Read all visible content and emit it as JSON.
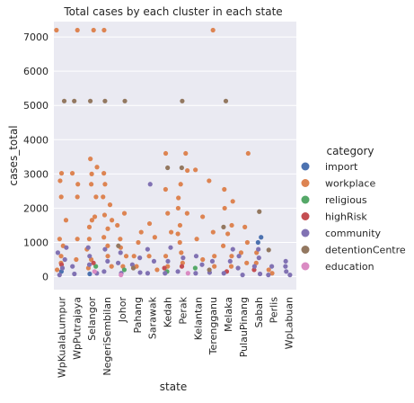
{
  "chart_data": {
    "type": "scatter",
    "title": "Total cases by each cluster in each state",
    "xlabel": "state",
    "ylabel": "cases_total",
    "ylim": [
      -380,
      7450
    ],
    "yticks": [
      0,
      1000,
      2000,
      3000,
      4000,
      5000,
      6000,
      7000
    ],
    "grid": true,
    "legend_title": "category",
    "legend_position": "right",
    "categories": [
      "WpKualaLumpur",
      "WpPutrajaya",
      "Selangor",
      "NegeriSembilan",
      "Johor",
      "Pahang",
      "Sarawak",
      "Kedah",
      "Perak",
      "Kelantan",
      "Terengganu",
      "Melaka",
      "PulauPinang",
      "Sabah",
      "Perlis",
      "WpLabuan"
    ],
    "series": [
      {
        "name": "import",
        "color": "#4c72b0",
        "points": [
          {
            "state": "Sabah",
            "y": 1150
          },
          {
            "state": "Sabah",
            "y": 1000
          },
          {
            "state": "WpKualaLumpur",
            "y": 150
          },
          {
            "state": "Selangor",
            "y": 80
          }
        ]
      },
      {
        "name": "workplace",
        "color": "#dd8452",
        "points": [
          {
            "state": "WpKualaLumpur",
            "y": 7200
          },
          {
            "state": "WpKualaLumpur",
            "y": 3020
          },
          {
            "state": "WpKualaLumpur",
            "y": 2800
          },
          {
            "state": "WpKualaLumpur",
            "y": 2330
          },
          {
            "state": "WpKualaLumpur",
            "y": 1650
          },
          {
            "state": "WpKualaLumpur",
            "y": 1100
          },
          {
            "state": "WpKualaLumpur",
            "y": 900
          },
          {
            "state": "WpKualaLumpur",
            "y": 600
          },
          {
            "state": "WpKualaLumpur",
            "y": 400
          },
          {
            "state": "WpKualaLumpur",
            "y": 200
          },
          {
            "state": "WpPutrajaya",
            "y": 7200
          },
          {
            "state": "WpPutrajaya",
            "y": 3020
          },
          {
            "state": "WpPutrajaya",
            "y": 2700
          },
          {
            "state": "WpPutrajaya",
            "y": 2330
          },
          {
            "state": "WpPutrajaya",
            "y": 1100
          },
          {
            "state": "WpPutrajaya",
            "y": 500
          },
          {
            "state": "Selangor",
            "y": 7200
          },
          {
            "state": "Selangor",
            "y": 3440
          },
          {
            "state": "Selangor",
            "y": 3200
          },
          {
            "state": "Selangor",
            "y": 3000
          },
          {
            "state": "Selangor",
            "y": 2700
          },
          {
            "state": "Selangor",
            "y": 2330
          },
          {
            "state": "Selangor",
            "y": 1750
          },
          {
            "state": "Selangor",
            "y": 1650
          },
          {
            "state": "Selangor",
            "y": 1450
          },
          {
            "state": "Selangor",
            "y": 1100
          },
          {
            "state": "Selangor",
            "y": 800
          },
          {
            "state": "Selangor",
            "y": 500
          },
          {
            "state": "Selangor",
            "y": 250
          },
          {
            "state": "NegeriSembilan",
            "y": 7200
          },
          {
            "state": "NegeriSembilan",
            "y": 3020
          },
          {
            "state": "NegeriSembilan",
            "y": 2700
          },
          {
            "state": "NegeriSembilan",
            "y": 2330
          },
          {
            "state": "NegeriSembilan",
            "y": 2100
          },
          {
            "state": "NegeriSembilan",
            "y": 1800
          },
          {
            "state": "NegeriSembilan",
            "y": 1650
          },
          {
            "state": "NegeriSembilan",
            "y": 1400
          },
          {
            "state": "NegeriSembilan",
            "y": 1150
          },
          {
            "state": "NegeriSembilan",
            "y": 900
          },
          {
            "state": "NegeriSembilan",
            "y": 600
          },
          {
            "state": "NegeriSembilan",
            "y": 300
          },
          {
            "state": "Johor",
            "y": 1850
          },
          {
            "state": "Johor",
            "y": 1500
          },
          {
            "state": "Johor",
            "y": 1100
          },
          {
            "state": "Johor",
            "y": 850
          },
          {
            "state": "Johor",
            "y": 600
          },
          {
            "state": "Johor",
            "y": 300
          },
          {
            "state": "Pahang",
            "y": 1300
          },
          {
            "state": "Pahang",
            "y": 1000
          },
          {
            "state": "Pahang",
            "y": 600
          },
          {
            "state": "Pahang",
            "y": 300
          },
          {
            "state": "Sarawak",
            "y": 1550
          },
          {
            "state": "Sarawak",
            "y": 1150
          },
          {
            "state": "Sarawak",
            "y": 600
          },
          {
            "state": "Sarawak",
            "y": 200
          },
          {
            "state": "Kedah",
            "y": 3600
          },
          {
            "state": "Kedah",
            "y": 2550
          },
          {
            "state": "Kedah",
            "y": 1850
          },
          {
            "state": "Kedah",
            "y": 1300
          },
          {
            "state": "Kedah",
            "y": 600
          },
          {
            "state": "Kedah",
            "y": 300
          },
          {
            "state": "Perak",
            "y": 3600
          },
          {
            "state": "Perak",
            "y": 3100
          },
          {
            "state": "Perak",
            "y": 2700
          },
          {
            "state": "Perak",
            "y": 2300
          },
          {
            "state": "Perak",
            "y": 2000
          },
          {
            "state": "Perak",
            "y": 1850
          },
          {
            "state": "Perak",
            "y": 1500
          },
          {
            "state": "Perak",
            "y": 1250
          },
          {
            "state": "Perak",
            "y": 1000
          },
          {
            "state": "Perak",
            "y": 700
          },
          {
            "state": "Perak",
            "y": 400
          },
          {
            "state": "Kelantan",
            "y": 3120
          },
          {
            "state": "Kelantan",
            "y": 1750
          },
          {
            "state": "Kelantan",
            "y": 1100
          },
          {
            "state": "Kelantan",
            "y": 500
          },
          {
            "state": "Terengganu",
            "y": 7200
          },
          {
            "state": "Terengganu",
            "y": 2800
          },
          {
            "state": "Terengganu",
            "y": 1300
          },
          {
            "state": "Terengganu",
            "y": 600
          },
          {
            "state": "Terengganu",
            "y": 300
          },
          {
            "state": "Melaka",
            "y": 2550
          },
          {
            "state": "Melaka",
            "y": 2200
          },
          {
            "state": "Melaka",
            "y": 2000
          },
          {
            "state": "Melaka",
            "y": 1500
          },
          {
            "state": "Melaka",
            "y": 1250
          },
          {
            "state": "Melaka",
            "y": 900
          },
          {
            "state": "Melaka",
            "y": 600
          },
          {
            "state": "Melaka",
            "y": 300
          },
          {
            "state": "PulauPinang",
            "y": 3600
          },
          {
            "state": "PulauPinang",
            "y": 1450
          },
          {
            "state": "PulauPinang",
            "y": 1000
          },
          {
            "state": "PulauPinang",
            "y": 700
          },
          {
            "state": "PulauPinang",
            "y": 400
          },
          {
            "state": "Sabah",
            "y": 700
          },
          {
            "state": "Sabah",
            "y": 400
          },
          {
            "state": "Perlis",
            "y": 200
          },
          {
            "state": "Perlis",
            "y": 100
          }
        ]
      },
      {
        "name": "religious",
        "color": "#55a868",
        "points": [
          {
            "state": "Selangor",
            "y": 300
          },
          {
            "state": "Johor",
            "y": 200
          },
          {
            "state": "Kedah",
            "y": 150
          },
          {
            "state": "Kelantan",
            "y": 250
          }
        ]
      },
      {
        "name": "highRisk",
        "color": "#c44e52",
        "points": [
          {
            "state": "WpKualaLumpur",
            "y": 350
          },
          {
            "state": "Selangor",
            "y": 400
          },
          {
            "state": "Perak",
            "y": 300
          },
          {
            "state": "Kedah",
            "y": 250
          },
          {
            "state": "Sabah",
            "y": 200
          },
          {
            "state": "Melaka",
            "y": 150
          }
        ]
      },
      {
        "name": "community",
        "color": "#8172b3",
        "points": [
          {
            "state": "WpKualaLumpur",
            "y": 850
          },
          {
            "state": "WpKualaLumpur",
            "y": 700
          },
          {
            "state": "WpKualaLumpur",
            "y": 500
          },
          {
            "state": "WpKualaLumpur",
            "y": 250
          },
          {
            "state": "WpKualaLumpur",
            "y": 50
          },
          {
            "state": "WpPutrajaya",
            "y": 300
          },
          {
            "state": "WpPutrajaya",
            "y": 80
          },
          {
            "state": "Selangor",
            "y": 850
          },
          {
            "state": "Selangor",
            "y": 600
          },
          {
            "state": "Selangor",
            "y": 350
          },
          {
            "state": "Selangor",
            "y": 100
          },
          {
            "state": "NegeriSembilan",
            "y": 800
          },
          {
            "state": "NegeriSembilan",
            "y": 450
          },
          {
            "state": "NegeriSembilan",
            "y": 150
          },
          {
            "state": "Johor",
            "y": 700
          },
          {
            "state": "Johor",
            "y": 400
          },
          {
            "state": "Johor",
            "y": 100
          },
          {
            "state": "Pahang",
            "y": 550
          },
          {
            "state": "Pahang",
            "y": 350
          },
          {
            "state": "Pahang",
            "y": 120
          },
          {
            "state": "Sarawak",
            "y": 2700
          },
          {
            "state": "Sarawak",
            "y": 800
          },
          {
            "state": "Sarawak",
            "y": 450
          },
          {
            "state": "Sarawak",
            "y": 100
          },
          {
            "state": "Kedah",
            "y": 850
          },
          {
            "state": "Kedah",
            "y": 450
          },
          {
            "state": "Kedah",
            "y": 100
          },
          {
            "state": "Perak",
            "y": 550
          },
          {
            "state": "Perak",
            "y": 150
          },
          {
            "state": "Kelantan",
            "y": 600
          },
          {
            "state": "Kelantan",
            "y": 350
          },
          {
            "state": "Kelantan",
            "y": 100
          },
          {
            "state": "Terengganu",
            "y": 450
          },
          {
            "state": "Terengganu",
            "y": 120
          },
          {
            "state": "Melaka",
            "y": 800
          },
          {
            "state": "Melaka",
            "y": 450
          },
          {
            "state": "Melaka",
            "y": 100
          },
          {
            "state": "PulauPinang",
            "y": 600
          },
          {
            "state": "PulauPinang",
            "y": 250
          },
          {
            "state": "PulauPinang",
            "y": 50
          },
          {
            "state": "Sabah",
            "y": 800
          },
          {
            "state": "Sabah",
            "y": 550
          },
          {
            "state": "Sabah",
            "y": 300
          },
          {
            "state": "Sabah",
            "y": 80
          },
          {
            "state": "Perlis",
            "y": 300
          },
          {
            "state": "Perlis",
            "y": 50
          },
          {
            "state": "WpLabuan",
            "y": 450
          },
          {
            "state": "WpLabuan",
            "y": 300
          },
          {
            "state": "WpLabuan",
            "y": 150
          },
          {
            "state": "WpLabuan",
            "y": 50
          }
        ]
      },
      {
        "name": "detentionCentre",
        "color": "#937860",
        "points": [
          {
            "state": "WpKualaLumpur",
            "y": 5130
          },
          {
            "state": "WpPutrajaya",
            "y": 5130
          },
          {
            "state": "Selangor",
            "y": 5130
          },
          {
            "state": "NegeriSembilan",
            "y": 5130
          },
          {
            "state": "Johor",
            "y": 5130
          },
          {
            "state": "Johor",
            "y": 900
          },
          {
            "state": "Kedah",
            "y": 3180
          },
          {
            "state": "Perak",
            "y": 5130
          },
          {
            "state": "Perak",
            "y": 3180
          },
          {
            "state": "Melaka",
            "y": 5130
          },
          {
            "state": "Melaka",
            "y": 1450
          },
          {
            "state": "Sabah",
            "y": 1900
          },
          {
            "state": "Perlis",
            "y": 780
          },
          {
            "state": "Pahang",
            "y": 250
          },
          {
            "state": "Terengganu",
            "y": 200
          }
        ]
      },
      {
        "name": "education",
        "color": "#da8bc3",
        "points": [
          {
            "state": "Selangor",
            "y": 150
          },
          {
            "state": "Perak",
            "y": 100
          },
          {
            "state": "Johor",
            "y": 50
          }
        ]
      }
    ]
  }
}
